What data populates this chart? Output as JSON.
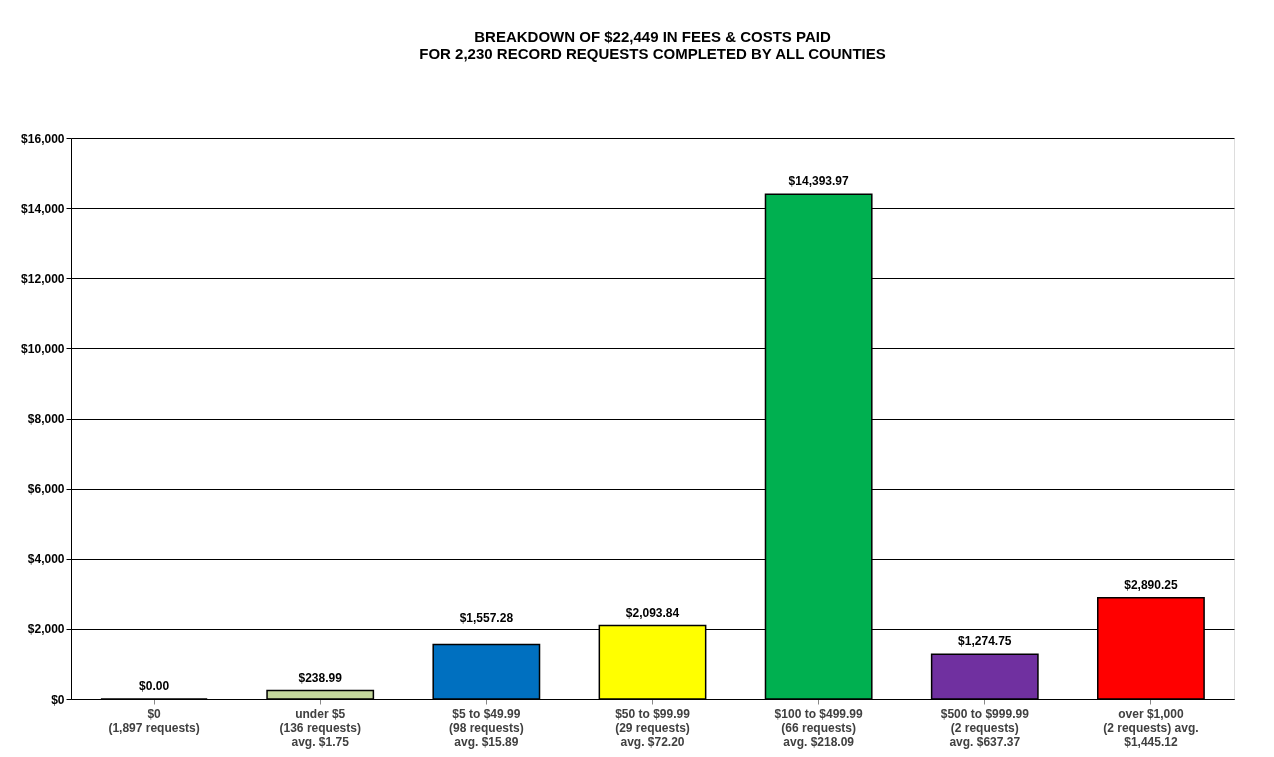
{
  "chart_data": {
    "type": "bar",
    "title": "BREAKDOWN OF $22,449 IN FEES & COSTS PAID\nFOR 2,230 RECORD REQUESTS COMPLETED BY ALL COUNTIES",
    "categories": [
      "$0\n(1,897 requests)",
      "under $5\n(136 requests)\navg. $1.75",
      "$5 to $49.99\n(98 requests)\navg. $15.89",
      "$50 to $99.99\n(29 requests)\navg. $72.20",
      "$100 to $499.99\n(66 requests)\navg. $218.09",
      "$500 to $999.99\n(2 requests)\navg. $637.37",
      "over $1,000\n(2 requests)  avg.\n$1,445.12"
    ],
    "values": [
      0,
      238.99,
      1557.28,
      2093.84,
      14393.97,
      1274.75,
      2890.25
    ],
    "colors": [
      "#000000",
      "#c4d79b",
      "#0070c0",
      "#ffff00",
      "#00b050",
      "#7030a0",
      "#ff0000"
    ],
    "value_labels": [
      "$0.00",
      "$238.99",
      "$1,557.28",
      "$2,093.84",
      "$14,393.97",
      "$1,274.75",
      "$2,890.25"
    ],
    "ylim": [
      0,
      16000
    ],
    "yticks": [
      {
        "value": 0,
        "label": "$0"
      },
      {
        "value": 2000,
        "label": "$2,000"
      },
      {
        "value": 4000,
        "label": "$4,000"
      },
      {
        "value": 6000,
        "label": "$6,000"
      },
      {
        "value": 8000,
        "label": "$8,000"
      },
      {
        "value": 10000,
        "label": "$10,000"
      },
      {
        "value": 12000,
        "label": "$12,000"
      },
      {
        "value": 14000,
        "label": "$14,000"
      },
      {
        "value": 16000,
        "label": "$16,000"
      }
    ],
    "grid": "y"
  }
}
